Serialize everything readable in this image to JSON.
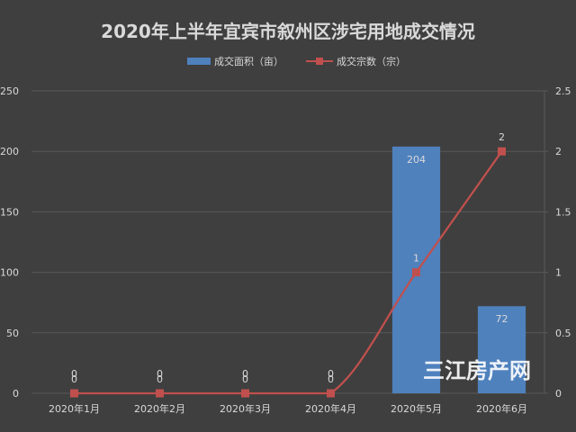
{
  "chart_data": {
    "type": "bar+line",
    "title": "2020年上半年宜宾市叙州区涉宅用地成交情况",
    "categories": [
      "2020年1月",
      "2020年2月",
      "2020年3月",
      "2020年4月",
      "2020年5月",
      "2020年6月"
    ],
    "series": [
      {
        "name": "成交面积（亩）",
        "type": "bar",
        "axis": "left",
        "color": "#4f81bd",
        "values": [
          0,
          0,
          0,
          0,
          204,
          72
        ],
        "labels": [
          "0",
          "0",
          "0",
          "0",
          "204",
          "72"
        ]
      },
      {
        "name": "成交宗数（宗）",
        "type": "line",
        "axis": "right",
        "color": "#c0504d",
        "values": [
          0,
          0,
          0,
          0,
          1,
          2
        ],
        "labels": [
          "0",
          "0",
          "0",
          "0",
          "1",
          "2"
        ]
      }
    ],
    "y_left": {
      "min": 0,
      "max": 250,
      "ticks": [
        0,
        50,
        100,
        150,
        200,
        250
      ],
      "tick_labels": [
        "0",
        "50",
        "100",
        "150",
        "200",
        "250"
      ]
    },
    "y_right": {
      "min": 0,
      "max": 2.5,
      "ticks": [
        0,
        0.5,
        1,
        1.5,
        2,
        2.5
      ],
      "tick_labels": [
        "0",
        "0.5",
        "1",
        "1.5",
        "2",
        "2.5"
      ]
    },
    "grid": true,
    "legend_position": "top-center"
  },
  "watermark": "三江房产网",
  "colors": {
    "background": "#3f3f3f",
    "grid": "#595959",
    "text": "#d9d9d9",
    "title": "#d9d9d9"
  }
}
